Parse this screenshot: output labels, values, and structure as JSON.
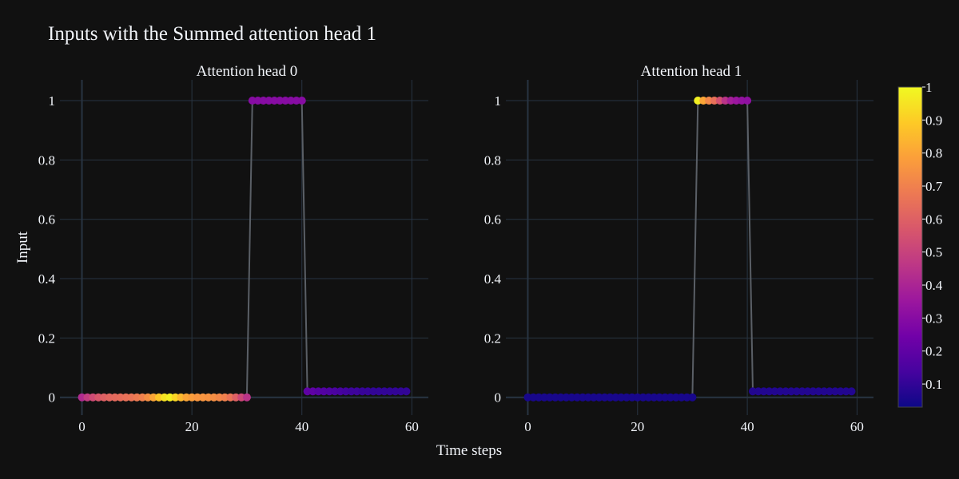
{
  "chart_data": {
    "type": "scatter",
    "title": "Inputs with the Summed attention head 1",
    "xlabel": "Time steps",
    "ylabel": "Input",
    "xlim": [
      -4,
      63
    ],
    "ylim": [
      -0.06,
      1.07
    ],
    "x_ticks": [
      0,
      20,
      40,
      60
    ],
    "y_ticks": [
      0,
      0.2,
      0.4,
      0.6,
      0.8,
      1
    ],
    "y_tick_labels": [
      "0",
      "0.2",
      "0.4",
      "0.6",
      "0.8",
      "1"
    ],
    "grid": true,
    "colorscale": "plasma",
    "colorbar": {
      "range": [
        0.03,
        1.0
      ],
      "ticks": [
        0.1,
        0.2,
        0.3,
        0.4,
        0.5,
        0.6,
        0.7,
        0.8,
        0.9,
        1
      ],
      "tick_labels": [
        "0.1",
        "0.2",
        "0.3",
        "0.4",
        "0.5",
        "0.6",
        "0.7",
        "0.8",
        "0.9",
        "1"
      ]
    },
    "colors": {
      "background": "#111111",
      "grid": "#283442",
      "line": "#5a5f66",
      "text": "#f2f5fa"
    },
    "input": {
      "x": [
        0,
        1,
        2,
        3,
        4,
        5,
        6,
        7,
        8,
        9,
        10,
        11,
        12,
        13,
        14,
        15,
        16,
        17,
        18,
        19,
        20,
        21,
        22,
        23,
        24,
        25,
        26,
        27,
        28,
        29,
        30,
        31,
        32,
        33,
        34,
        35,
        36,
        37,
        38,
        39,
        40,
        41,
        42,
        43,
        44,
        45,
        46,
        47,
        48,
        49,
        50,
        51,
        52,
        53,
        54,
        55,
        56,
        57,
        58,
        59
      ],
      "y_head0": [
        0,
        0,
        0,
        0,
        0,
        0,
        0,
        0,
        0,
        0,
        0,
        0,
        0,
        0,
        0,
        0,
        0,
        0,
        0,
        0,
        0,
        0,
        0,
        0,
        0,
        0,
        0,
        0,
        0,
        0,
        0,
        1,
        1,
        1,
        1,
        1,
        1,
        1,
        1,
        1,
        1,
        0.02,
        0.02,
        0.02,
        0.02,
        0.02,
        0.02,
        0.02,
        0.02,
        0.02,
        0.02,
        0.02,
        0.02,
        0.02,
        0.02,
        0.02,
        0.02,
        0.02,
        0.02,
        0.02
      ],
      "y_head1": [
        0,
        0,
        0,
        0,
        0,
        0,
        0,
        0,
        0,
        0,
        0,
        0,
        0,
        0,
        0,
        0,
        0,
        0,
        0,
        0,
        0,
        0,
        0,
        0,
        0,
        0,
        0,
        0,
        0,
        0,
        0,
        1,
        1,
        1,
        1,
        1,
        1,
        1,
        1,
        1,
        1,
        0.02,
        0.02,
        0.02,
        0.02,
        0.02,
        0.02,
        0.02,
        0.02,
        0.02,
        0.02,
        0.02,
        0.02,
        0.02,
        0.02,
        0.02,
        0.02,
        0.02,
        0.02,
        0.02
      ]
    },
    "subplots": [
      {
        "title": "Attention head 0",
        "attention": [
          0.42,
          0.48,
          0.53,
          0.57,
          0.6,
          0.62,
          0.63,
          0.64,
          0.65,
          0.66,
          0.68,
          0.7,
          0.74,
          0.8,
          0.88,
          0.95,
          0.98,
          0.92,
          0.85,
          0.8,
          0.78,
          0.76,
          0.76,
          0.75,
          0.74,
          0.72,
          0.7,
          0.66,
          0.6,
          0.52,
          0.45,
          0.3,
          0.3,
          0.3,
          0.3,
          0.3,
          0.3,
          0.3,
          0.3,
          0.3,
          0.3,
          0.2,
          0.2,
          0.18,
          0.17,
          0.16,
          0.15,
          0.14,
          0.13,
          0.12,
          0.12,
          0.11,
          0.11,
          0.1,
          0.1,
          0.1,
          0.1,
          0.1,
          0.1,
          0.1
        ]
      },
      {
        "title": "Attention head 1",
        "attention": [
          0.05,
          0.05,
          0.05,
          0.05,
          0.05,
          0.05,
          0.05,
          0.05,
          0.05,
          0.05,
          0.05,
          0.05,
          0.05,
          0.05,
          0.05,
          0.05,
          0.05,
          0.05,
          0.05,
          0.05,
          0.05,
          0.05,
          0.05,
          0.05,
          0.05,
          0.05,
          0.05,
          0.05,
          0.05,
          0.05,
          0.05,
          0.98,
          0.8,
          0.72,
          0.65,
          0.55,
          0.45,
          0.38,
          0.35,
          0.33,
          0.32,
          0.07,
          0.07,
          0.07,
          0.07,
          0.07,
          0.07,
          0.07,
          0.07,
          0.07,
          0.07,
          0.07,
          0.07,
          0.07,
          0.07,
          0.07,
          0.07,
          0.07,
          0.07,
          0.07
        ]
      }
    ]
  }
}
